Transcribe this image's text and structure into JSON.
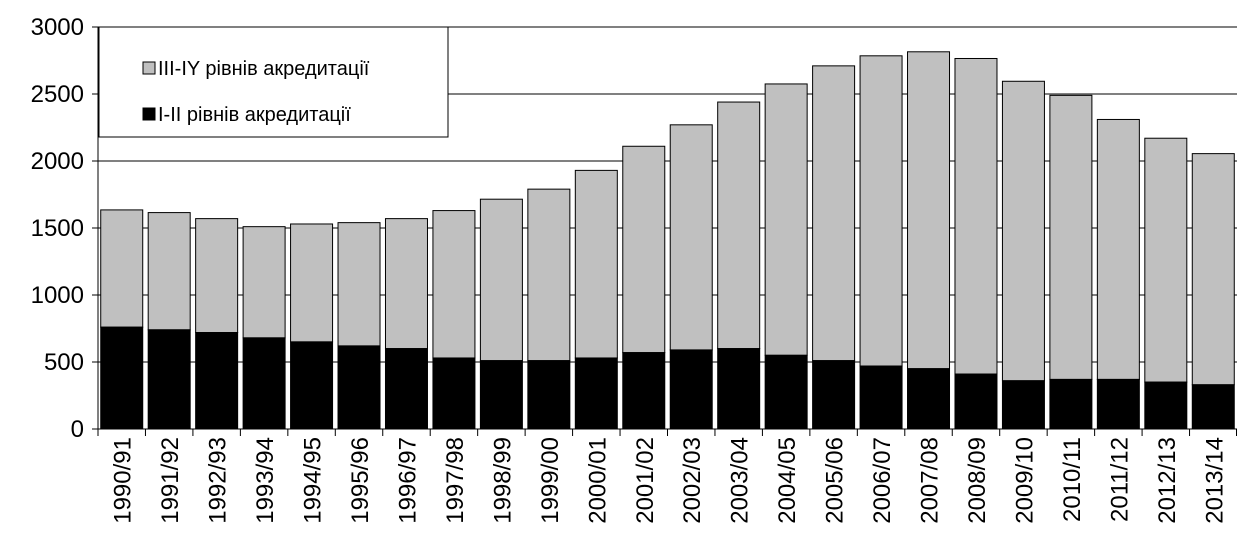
{
  "chart_data": {
    "type": "bar",
    "stacked": true,
    "title": "",
    "xlabel": "",
    "ylabel": "",
    "ylim": [
      0,
      3000
    ],
    "yticks": [
      0,
      500,
      1000,
      1500,
      2000,
      2500,
      3000
    ],
    "grid": "horizontal",
    "legend_position": "top-left",
    "categories": [
      "1990/91",
      "1991/92",
      "1992/93",
      "1993/94",
      "1994/95",
      "1995/96",
      "1996/97",
      "1997/98",
      "1998/99",
      "1999/00",
      "2000/01",
      "2001/02",
      "2002/03",
      "2003/04",
      "2004/05",
      "2005/06",
      "2006/07",
      "2007/08",
      "2008/09",
      "2009/10",
      "2010/11",
      "2011/12",
      "2012/13",
      "2013/14"
    ],
    "series": [
      {
        "name": "I-II рівнів акредитації",
        "color": "#000000",
        "values": [
          760,
          740,
          720,
          680,
          650,
          620,
          600,
          530,
          510,
          510,
          530,
          570,
          590,
          600,
          550,
          510,
          470,
          450,
          410,
          360,
          370,
          370,
          350,
          330
        ]
      },
      {
        "name": "III-IY рівнів акредитації",
        "color": "#c0c0c0",
        "values": [
          875,
          875,
          850,
          830,
          880,
          920,
          970,
          1100,
          1205,
          1280,
          1400,
          1540,
          1680,
          1840,
          2025,
          2200,
          2315,
          2365,
          2355,
          2235,
          2120,
          1940,
          1820,
          1725
        ]
      }
    ]
  }
}
